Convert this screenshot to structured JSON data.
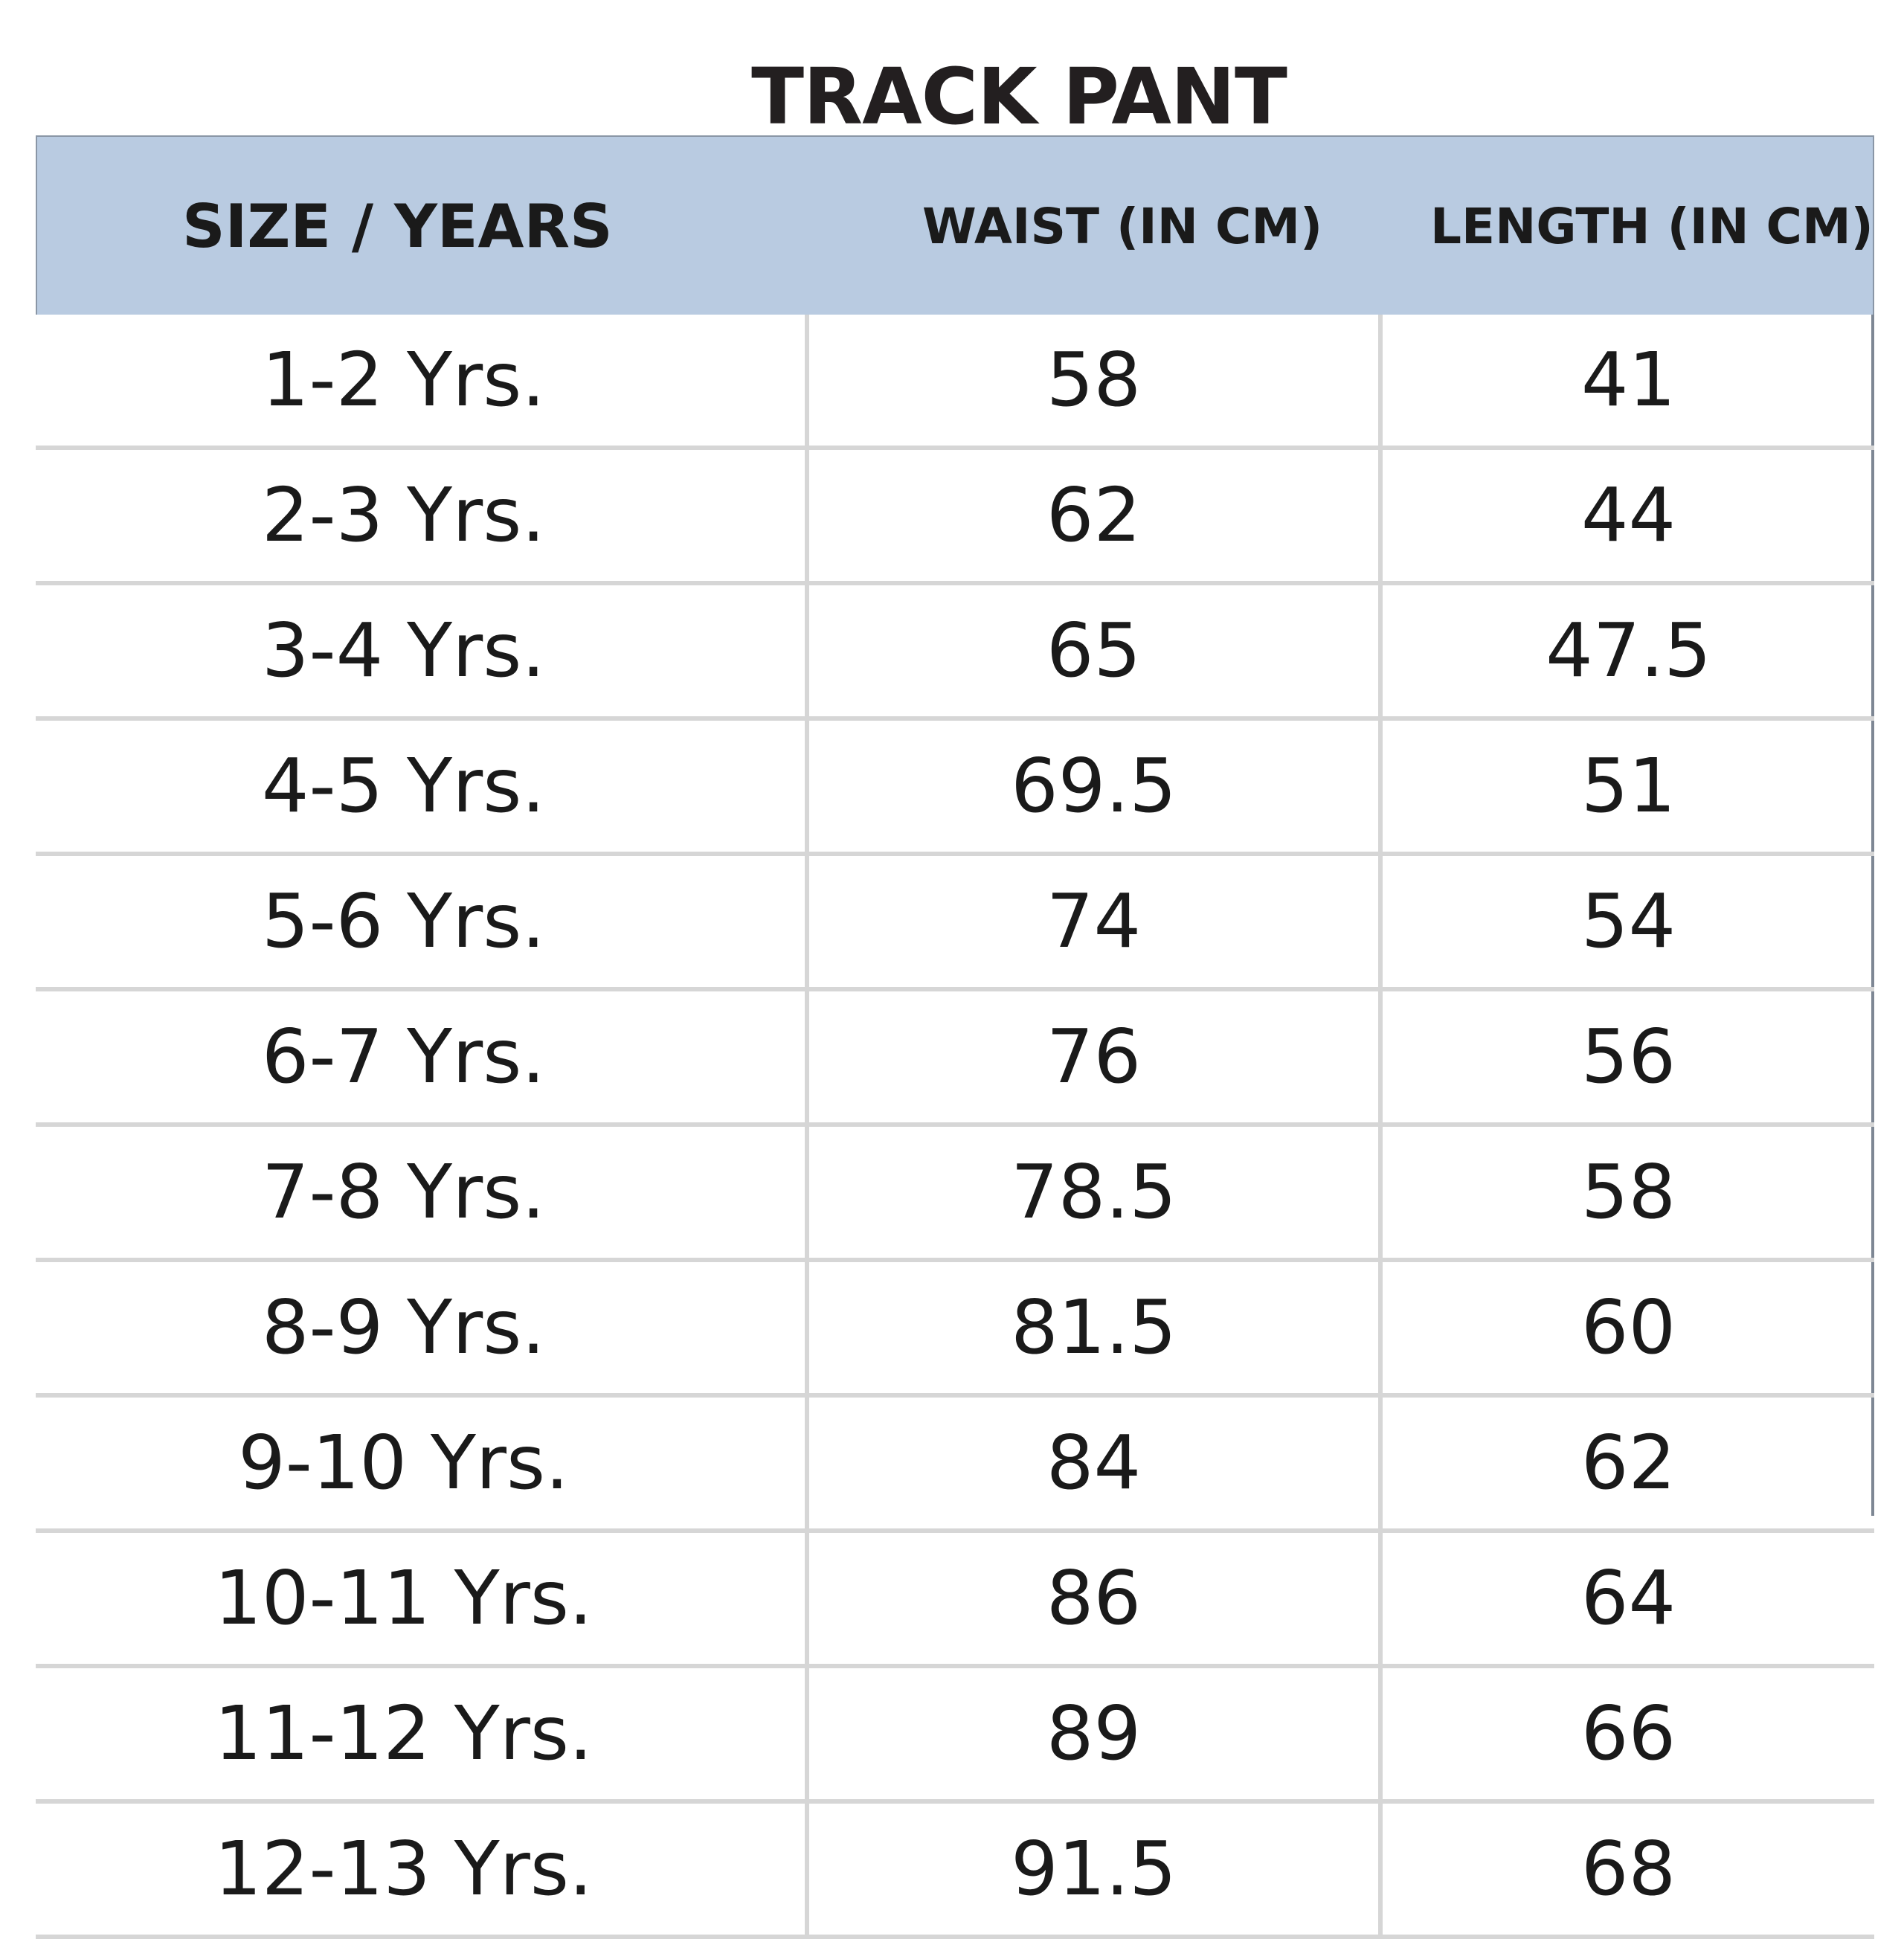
{
  "title": "TRACK PANT",
  "table": {
    "headers": {
      "size": "SIZE / YEARS",
      "waist": "WAIST (IN CM)",
      "length": "LENGTH (IN CM)"
    },
    "rows": [
      {
        "size": "1-2 Yrs.",
        "waist": "58",
        "length": "41"
      },
      {
        "size": "2-3 Yrs.",
        "waist": "62",
        "length": "44"
      },
      {
        "size": "3-4 Yrs.",
        "waist": "65",
        "length": "47.5"
      },
      {
        "size": "4-5 Yrs.",
        "waist": "69.5",
        "length": "51"
      },
      {
        "size": "5-6 Yrs.",
        "waist": "74",
        "length": "54"
      },
      {
        "size": "6-7 Yrs.",
        "waist": "76",
        "length": "56"
      },
      {
        "size": "7-8 Yrs.",
        "waist": "78.5",
        "length": "58"
      },
      {
        "size": "8-9 Yrs.",
        "waist": "81.5",
        "length": "60"
      },
      {
        "size": "9-10 Yrs.",
        "waist": "84",
        "length": "62"
      },
      {
        "size": "10-11 Yrs.",
        "waist": "86",
        "length": "64"
      },
      {
        "size": "11-12 Yrs.",
        "waist": "89",
        "length": "66"
      },
      {
        "size": "12-13 Yrs.",
        "waist": "91.5",
        "length": "68"
      }
    ]
  },
  "colors": {
    "header_background": "#b9cbe1",
    "grid_line": "#d6d6d6",
    "text": "#1a1a1a"
  }
}
